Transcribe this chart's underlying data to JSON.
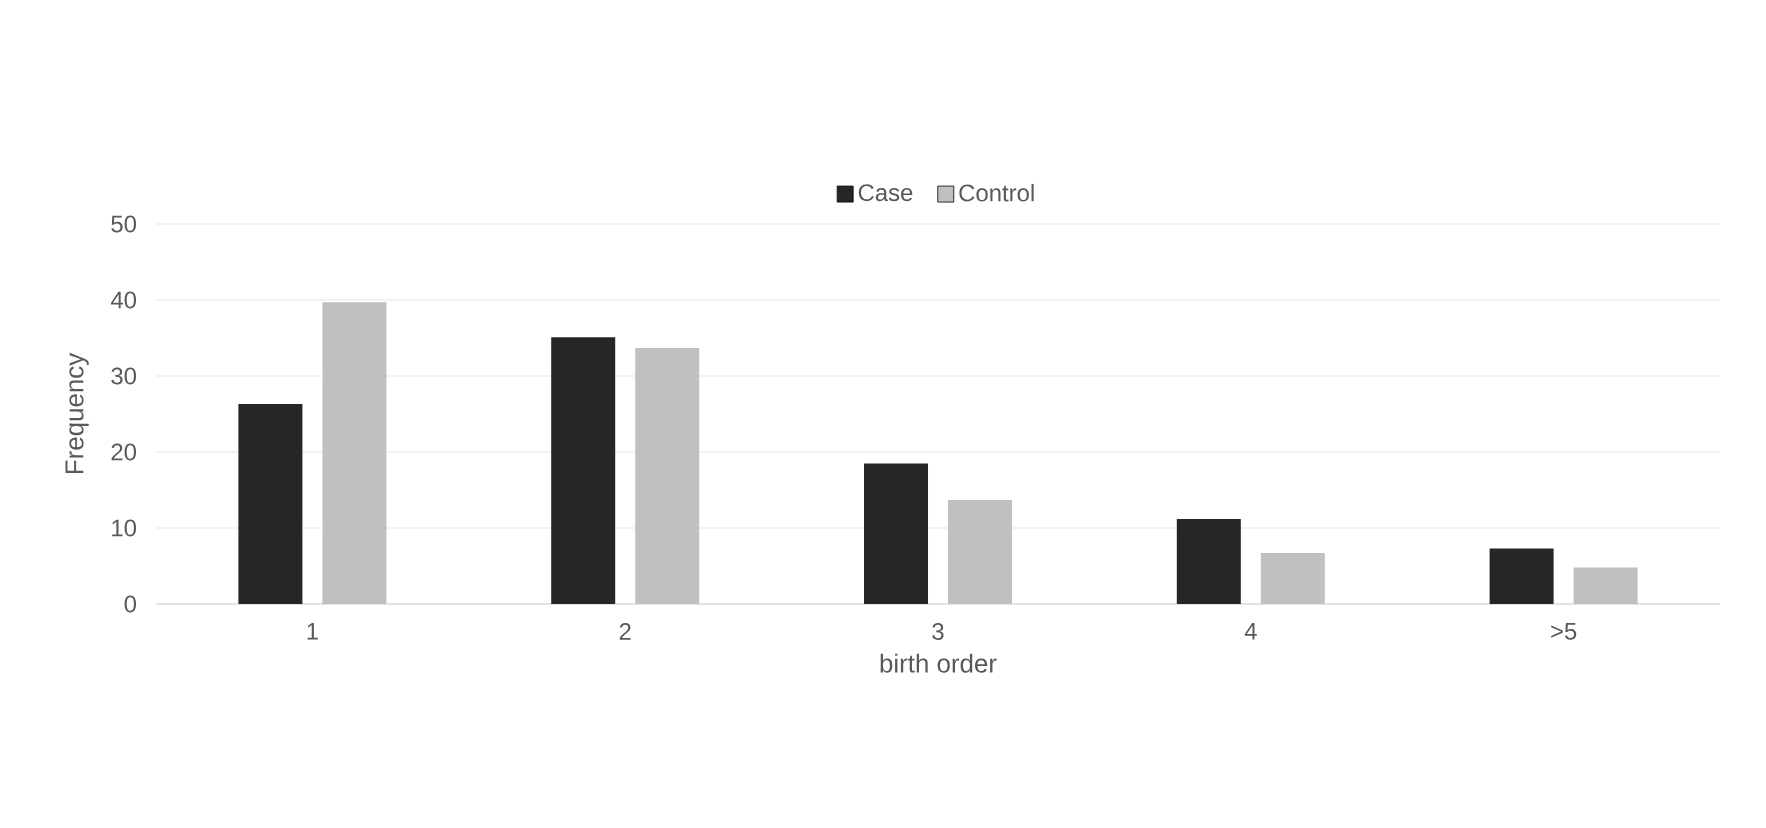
{
  "chart_data": {
    "type": "bar",
    "xlabel": "birth order",
    "ylabel": "Frequency",
    "categories": [
      "1",
      "2",
      "3",
      "4",
      ">5"
    ],
    "series": [
      {
        "name": "Case",
        "color": "#262626",
        "values": [
          26.3,
          35.1,
          18.5,
          11.2,
          7.3
        ]
      },
      {
        "name": "Control",
        "color": "#c0c0c0",
        "values": [
          39.7,
          33.7,
          13.7,
          6.7,
          4.8
        ]
      }
    ],
    "ylim": [
      0,
      50
    ],
    "yticks": [
      0,
      10,
      20,
      30,
      40,
      50
    ],
    "grid": "y",
    "legend": "top"
  }
}
